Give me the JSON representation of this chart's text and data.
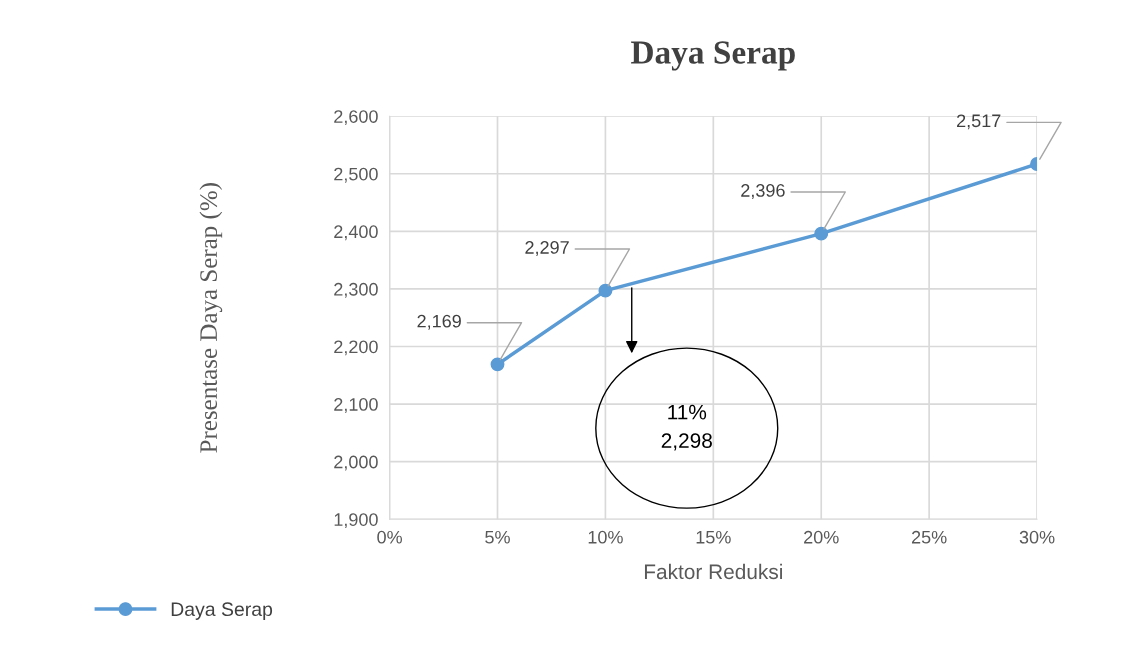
{
  "chart_data": {
    "type": "line",
    "title": "Daya Serap",
    "xlabel": "Faktor Reduksi",
    "ylabel": "Presentase Daya Serap (%)",
    "x": [
      5,
      10,
      20,
      30
    ],
    "series": [
      {
        "name": "Daya Serap",
        "color": "#5b9bd5",
        "values": [
          2169,
          2297,
          2396,
          2517
        ],
        "value_labels": [
          "2,169",
          "2,297",
          "2,396",
          "2,517"
        ]
      }
    ],
    "xlim": [
      0,
      30
    ],
    "xticks": [
      {
        "value": 0,
        "label": "0%"
      },
      {
        "value": 5,
        "label": "5%"
      },
      {
        "value": 10,
        "label": "10%"
      },
      {
        "value": 15,
        "label": "15%"
      },
      {
        "value": 20,
        "label": "20%"
      },
      {
        "value": 25,
        "label": "25%"
      },
      {
        "value": 30,
        "label": "30%"
      }
    ],
    "ylim": [
      1900,
      2600
    ],
    "yticks": [
      {
        "value": 1900,
        "label": "1,900"
      },
      {
        "value": 2000,
        "label": "2,000"
      },
      {
        "value": 2100,
        "label": "2,100"
      },
      {
        "value": 2200,
        "label": "2,200"
      },
      {
        "value": 2300,
        "label": "2,300"
      },
      {
        "value": 2400,
        "label": "2,400"
      },
      {
        "value": 2500,
        "label": "2,500"
      },
      {
        "value": 2600,
        "label": "2,600"
      }
    ],
    "annotations": [
      "11%\n2,298"
    ],
    "grid": true,
    "legend": "bottom left",
    "marker": "circle",
    "line_style": "solid"
  }
}
